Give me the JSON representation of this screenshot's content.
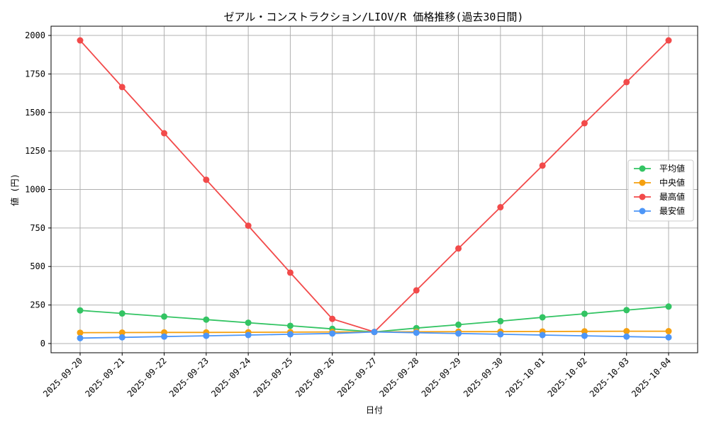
{
  "chart_data": {
    "type": "line",
    "title": "ゼアル・コンストラクション/LIOV/R 価格推移(過去30日間)",
    "xlabel": "日付",
    "ylabel": "値 (円)",
    "ylim": [
      -60,
      2060
    ],
    "yticks": [
      0,
      250,
      500,
      750,
      1000,
      1250,
      1500,
      1750,
      2000
    ],
    "grid": true,
    "legend_position": "right",
    "categories": [
      "2025-09-20",
      "2025-09-21",
      "2025-09-22",
      "2025-09-23",
      "2025-09-24",
      "2025-09-25",
      "2025-09-26",
      "2025-09-27",
      "2025-09-28",
      "2025-09-29",
      "2025-09-30",
      "2025-10-01",
      "2025-10-02",
      "2025-10-03",
      "2025-10-04"
    ],
    "series": [
      {
        "name": "平均値",
        "color": "#33c463",
        "values": [
          215,
          195,
          175,
          155,
          135,
          115,
          95,
          75,
          100,
          122,
          145,
          170,
          193,
          217,
          240
        ]
      },
      {
        "name": "中央値",
        "color": "#f5a00f",
        "values": [
          70,
          71,
          72,
          72,
          73,
          74,
          75,
          75,
          76,
          77,
          77,
          78,
          79,
          80,
          80
        ]
      },
      {
        "name": "最高値",
        "color": "#f24a4a",
        "values": [
          1968,
          1665,
          1365,
          1063,
          765,
          460,
          160,
          75,
          345,
          617,
          885,
          1155,
          1430,
          1697,
          1968
        ]
      },
      {
        "name": "最安値",
        "color": "#4d96f7",
        "values": [
          35,
          40,
          45,
          50,
          55,
          60,
          65,
          75,
          70,
          65,
          60,
          55,
          50,
          45,
          40
        ]
      }
    ]
  }
}
